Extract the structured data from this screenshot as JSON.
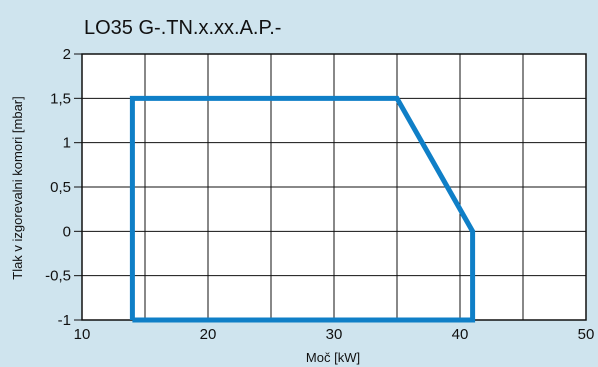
{
  "chart_data": {
    "type": "line",
    "title": "LO35  G-.TN.x.xx.A.P.-",
    "xlabel": "Moč [kW]",
    "ylabel": "Tlak v izgorevalni komori [mbar]",
    "xlim": [
      10,
      50
    ],
    "ylim": [
      -1,
      2
    ],
    "x_ticks": [
      "10",
      "20",
      "30",
      "40",
      "50"
    ],
    "y_ticks": [
      "2",
      "1,5",
      "1",
      "0,5",
      "0",
      "-0,5",
      "-1"
    ],
    "x_grid": [
      10,
      15,
      20,
      25,
      30,
      35,
      40,
      45,
      50
    ],
    "y_grid": [
      -1,
      -0.5,
      0,
      0.5,
      1,
      1.5,
      2
    ],
    "grid": true,
    "series": [
      {
        "x": [
          14,
          14,
          35,
          41,
          41,
          14
        ],
        "y": [
          -1,
          1.5,
          1.5,
          0.0,
          -1,
          -1
        ],
        "color": "#0f7fc7"
      }
    ]
  }
}
